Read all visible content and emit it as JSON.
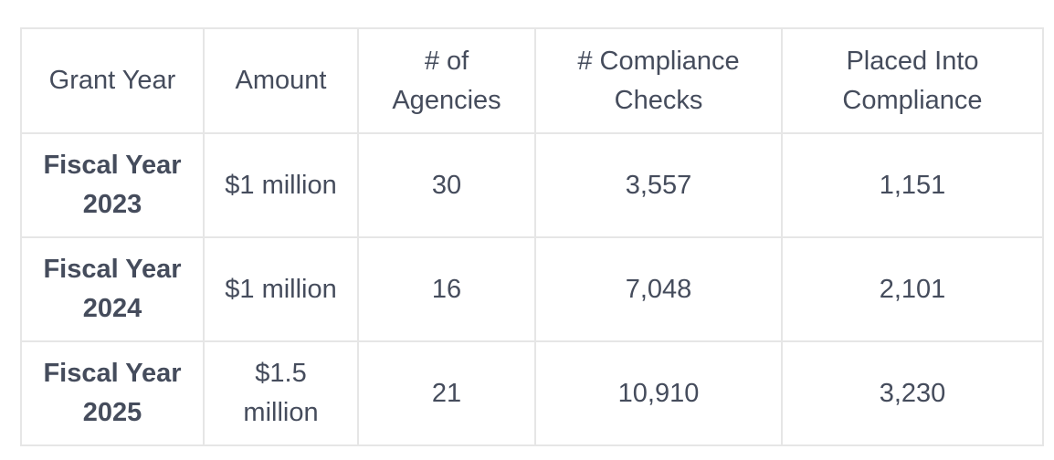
{
  "table": {
    "headers": [
      "Grant Year",
      "Amount",
      "# of Agencies",
      "# Compliance Checks",
      "Placed Into Compliance"
    ],
    "rows": [
      {
        "grant_year": "Fiscal Year 2023",
        "amount": "$1 million",
        "agencies": "30",
        "compliance_checks": "3,557",
        "placed_into_compliance": "1,151"
      },
      {
        "grant_year": "Fiscal Year 2024",
        "amount": "$1 million",
        "agencies": "16",
        "compliance_checks": "7,048",
        "placed_into_compliance": "2,101"
      },
      {
        "grant_year": "Fiscal Year 2025",
        "amount": "$1.5 million",
        "agencies": "21",
        "compliance_checks": "10,910",
        "placed_into_compliance": "3,230"
      }
    ]
  }
}
